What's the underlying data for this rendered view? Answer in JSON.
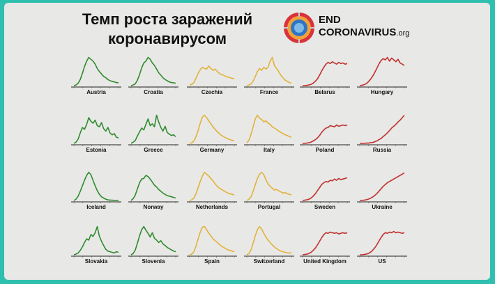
{
  "header": {
    "title_line1": "Темп роста заражений",
    "title_line2": "коронавирусом",
    "logo_line1": "END",
    "logo_line2": "CORONAVIRUS",
    "logo_suffix": ".org"
  },
  "colors": {
    "green": "#2e8b2e",
    "yellow": "#e2b23a",
    "red": "#c0302f",
    "background": "#2fbfae",
    "panel": "#e8e8e6"
  },
  "chart_data": [
    {
      "type": "line",
      "country": "Austria",
      "color": "green",
      "values": [
        0,
        2,
        8,
        20,
        40,
        62,
        80,
        92,
        86,
        80,
        70,
        56,
        46,
        38,
        30,
        26,
        20,
        16,
        14,
        12,
        10,
        9
      ]
    },
    {
      "type": "line",
      "country": "Croatia",
      "color": "green",
      "values": [
        0,
        2,
        6,
        18,
        36,
        58,
        74,
        80,
        92,
        86,
        74,
        66,
        54,
        42,
        34,
        26,
        20,
        16,
        12,
        10,
        9,
        8
      ]
    },
    {
      "type": "line",
      "country": "Czechia",
      "color": "yellow",
      "values": [
        2,
        4,
        10,
        24,
        40,
        52,
        60,
        56,
        54,
        64,
        56,
        50,
        54,
        46,
        40,
        36,
        34,
        30,
        28,
        26,
        24,
        22
      ]
    },
    {
      "type": "line",
      "country": "France",
      "color": "yellow",
      "values": [
        0,
        2,
        6,
        14,
        30,
        46,
        56,
        50,
        60,
        54,
        60,
        80,
        92,
        66,
        56,
        46,
        34,
        26,
        18,
        14,
        10,
        8
      ]
    },
    {
      "type": "line",
      "country": "Belarus",
      "color": "red",
      "values": [
        0,
        0,
        1,
        2,
        4,
        8,
        14,
        22,
        34,
        48,
        60,
        70,
        76,
        72,
        78,
        74,
        70,
        76,
        72,
        74,
        70,
        72
      ]
    },
    {
      "type": "line",
      "country": "Hungary",
      "color": "red",
      "values": [
        0,
        1,
        3,
        6,
        12,
        20,
        30,
        42,
        56,
        70,
        82,
        88,
        84,
        92,
        80,
        90,
        84,
        78,
        86,
        74,
        70,
        66
      ]
    },
    {
      "type": "line",
      "country": "Estonia",
      "color": "green",
      "values": [
        0,
        4,
        14,
        34,
        52,
        46,
        62,
        84,
        72,
        66,
        76,
        58,
        54,
        68,
        48,
        40,
        52,
        34,
        28,
        32,
        20,
        18
      ]
    },
    {
      "type": "line",
      "country": "Greece",
      "color": "green",
      "values": [
        0,
        4,
        10,
        24,
        38,
        50,
        44,
        62,
        80,
        58,
        64,
        54,
        92,
        70,
        52,
        40,
        56,
        36,
        30,
        26,
        28,
        22
      ]
    },
    {
      "type": "line",
      "country": "Germany",
      "color": "yellow",
      "values": [
        0,
        2,
        8,
        22,
        42,
        66,
        86,
        92,
        84,
        74,
        64,
        54,
        46,
        38,
        32,
        26,
        22,
        18,
        15,
        12,
        10,
        9
      ]
    },
    {
      "type": "line",
      "country": "Italy",
      "color": "yellow",
      "values": [
        2,
        10,
        30,
        54,
        80,
        92,
        82,
        78,
        70,
        74,
        66,
        62,
        54,
        50,
        46,
        40,
        36,
        32,
        28,
        26,
        22,
        20
      ]
    },
    {
      "type": "line",
      "country": "Poland",
      "color": "red",
      "values": [
        0,
        0,
        1,
        2,
        4,
        8,
        12,
        18,
        26,
        36,
        44,
        50,
        52,
        58,
        56,
        54,
        60,
        56,
        58,
        60,
        58,
        60
      ]
    },
    {
      "type": "line",
      "country": "Russia",
      "color": "red",
      "values": [
        0,
        0,
        0,
        1,
        1,
        2,
        3,
        5,
        8,
        12,
        16,
        22,
        28,
        34,
        42,
        50,
        56,
        62,
        70,
        76,
        84,
        92
      ]
    },
    {
      "type": "line",
      "country": "Iceland",
      "color": "green",
      "values": [
        0,
        4,
        14,
        30,
        48,
        66,
        82,
        92,
        84,
        66,
        48,
        32,
        20,
        12,
        8,
        4,
        2,
        1,
        1,
        0,
        0,
        0
      ]
    },
    {
      "type": "line",
      "country": "Norway",
      "color": "green",
      "values": [
        0,
        6,
        18,
        38,
        58,
        70,
        72,
        82,
        78,
        70,
        60,
        50,
        44,
        36,
        30,
        24,
        20,
        16,
        14,
        12,
        10,
        8
      ]
    },
    {
      "type": "line",
      "country": "Netherlands",
      "color": "yellow",
      "values": [
        0,
        2,
        8,
        22,
        42,
        62,
        80,
        92,
        86,
        80,
        72,
        64,
        54,
        46,
        40,
        36,
        32,
        28,
        24,
        22,
        20,
        18
      ]
    },
    {
      "type": "line",
      "country": "Portugal",
      "color": "yellow",
      "values": [
        0,
        4,
        12,
        30,
        52,
        72,
        86,
        92,
        84,
        68,
        54,
        46,
        40,
        34,
        36,
        32,
        28,
        24,
        26,
        22,
        20,
        18
      ]
    },
    {
      "type": "line",
      "country": "Sweden",
      "color": "red",
      "values": [
        0,
        1,
        2,
        4,
        8,
        14,
        22,
        32,
        42,
        52,
        58,
        62,
        60,
        66,
        64,
        70,
        66,
        72,
        68,
        70,
        72,
        74
      ]
    },
    {
      "type": "line",
      "country": "Ukraine",
      "color": "red",
      "values": [
        0,
        0,
        1,
        2,
        4,
        7,
        11,
        16,
        22,
        30,
        38,
        46,
        52,
        58,
        62,
        66,
        70,
        74,
        78,
        82,
        86,
        90
      ]
    },
    {
      "type": "line",
      "country": "Slovakia",
      "color": "green",
      "values": [
        0,
        2,
        6,
        14,
        26,
        40,
        52,
        48,
        66,
        60,
        72,
        92,
        60,
        44,
        30,
        18,
        12,
        10,
        8,
        6,
        10,
        8
      ]
    },
    {
      "type": "line",
      "country": "Slovenia",
      "color": "green",
      "values": [
        0,
        4,
        16,
        38,
        62,
        82,
        92,
        80,
        70,
        58,
        72,
        54,
        48,
        40,
        46,
        36,
        30,
        24,
        20,
        16,
        12,
        10
      ]
    },
    {
      "type": "line",
      "country": "Spain",
      "color": "yellow",
      "values": [
        0,
        2,
        10,
        28,
        52,
        74,
        90,
        92,
        82,
        70,
        62,
        52,
        46,
        40,
        34,
        28,
        24,
        20,
        16,
        14,
        12,
        10
      ]
    },
    {
      "type": "line",
      "country": "Switzerland",
      "color": "yellow",
      "values": [
        0,
        4,
        16,
        38,
        62,
        82,
        92,
        84,
        70,
        58,
        48,
        40,
        32,
        26,
        20,
        16,
        12,
        10,
        8,
        7,
        6,
        6
      ]
    },
    {
      "type": "line",
      "country": "United Kingdom",
      "color": "red",
      "values": [
        0,
        1,
        2,
        4,
        8,
        14,
        22,
        32,
        44,
        56,
        66,
        72,
        70,
        74,
        72,
        70,
        72,
        68,
        70,
        72,
        70,
        72
      ]
    },
    {
      "type": "line",
      "country": "US",
      "color": "red",
      "values": [
        0,
        0,
        1,
        2,
        4,
        8,
        14,
        22,
        32,
        44,
        56,
        66,
        72,
        70,
        74,
        72,
        76,
        72,
        74,
        72,
        70,
        72
      ]
    }
  ]
}
